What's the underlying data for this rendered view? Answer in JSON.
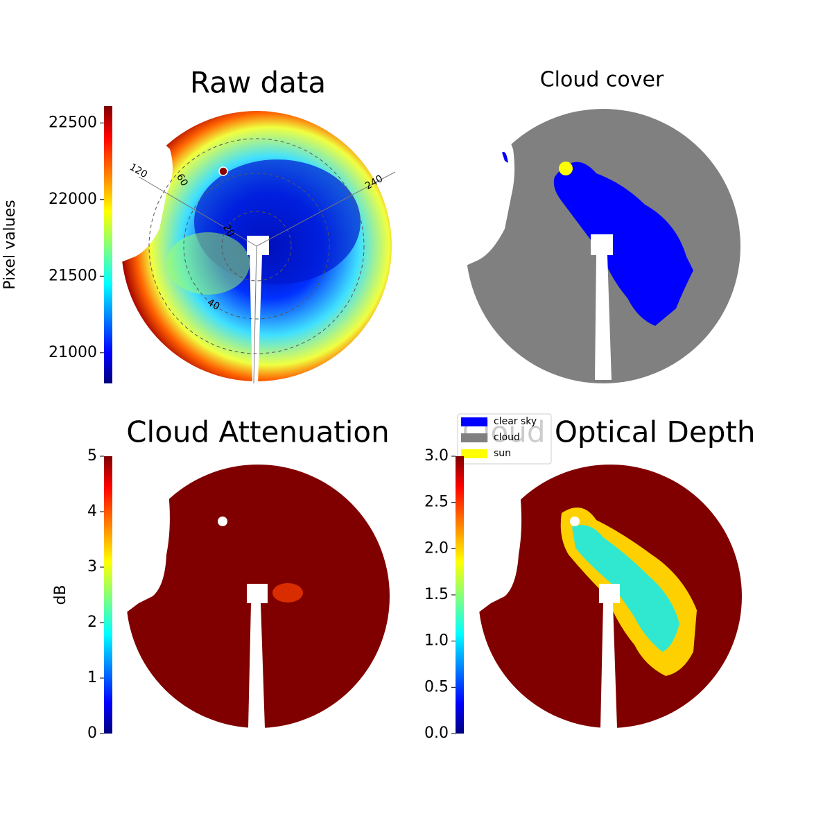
{
  "chart_data": [
    {
      "type": "image",
      "title": "Raw data",
      "colormap": "jet",
      "colorbar": {
        "label": "Pixel values",
        "lim": [
          20800,
          22610
        ],
        "ticks": [
          21000,
          21500,
          22000,
          22500
        ]
      },
      "annotations": [
        "120",
        "240",
        "20",
        "40",
        "60"
      ]
    },
    {
      "type": "image",
      "title": "Cloud cover",
      "legend": [
        {
          "name": "clear sky",
          "color": "#0000ff"
        },
        {
          "name": "cloud",
          "color": "#808080"
        },
        {
          "name": "sun",
          "color": "#ffff00"
        }
      ]
    },
    {
      "type": "image",
      "title": "Cloud Attenuation",
      "colormap": "jet",
      "colorbar": {
        "label": "dB",
        "lim": [
          0,
          5
        ],
        "ticks": [
          0,
          1,
          2,
          3,
          4,
          5
        ]
      }
    },
    {
      "type": "image",
      "title": "Cloud Optical Depth",
      "colormap": "jet",
      "colorbar": {
        "lim": [
          0,
          3
        ],
        "ticks": [
          {
            "value": 0,
            "label": "0.0"
          },
          0.5,
          {
            "value": 1,
            "label": "1.0"
          },
          1.5,
          {
            "value": 2,
            "label": "2.0"
          },
          2.5,
          {
            "value": 3,
            "label": "3.0"
          }
        ]
      }
    }
  ]
}
